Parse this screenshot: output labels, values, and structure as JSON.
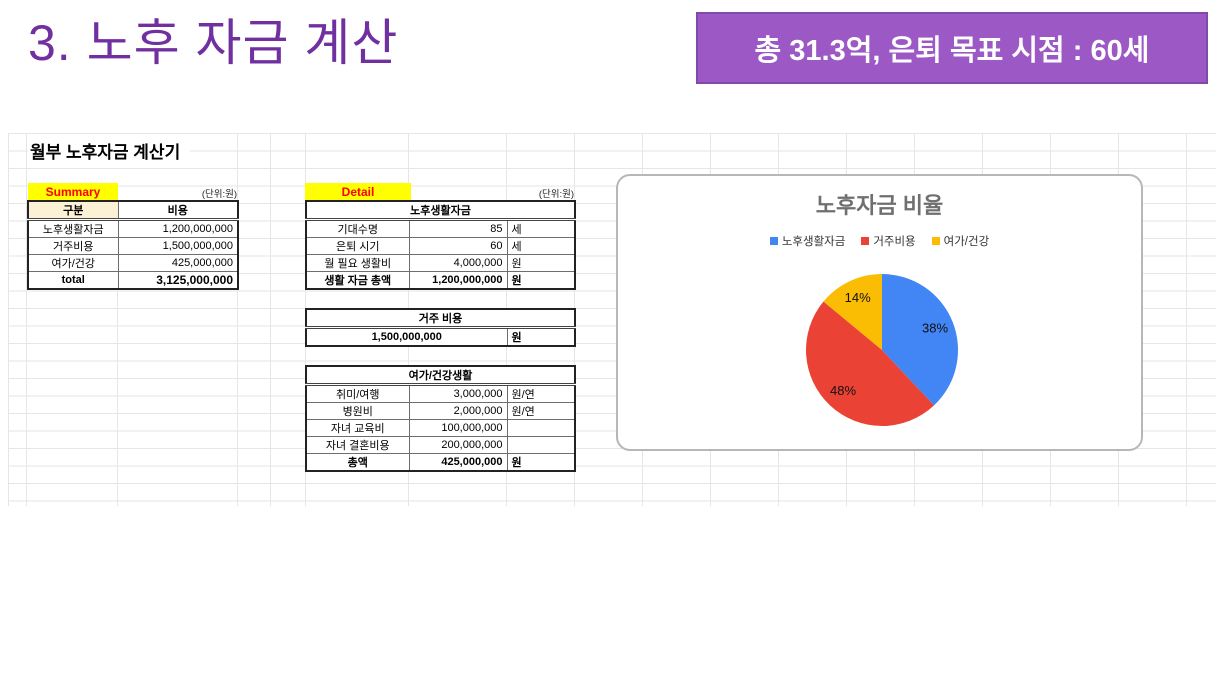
{
  "slide": {
    "title": "3. 노후 자금 계산",
    "badge": "총 31.3억, 은퇴 목표 시점  : 60세",
    "accent_purple": "#7030A0",
    "badge_bg": "#9C59C5",
    "badge_border": "#8249A8"
  },
  "sheet": {
    "title": "월부 노후자금 계산기",
    "summary": {
      "label": "Summary",
      "unit_note": "(단위:원)",
      "col_headers": [
        "구분",
        "비용"
      ],
      "rows": [
        {
          "name": "노후생활자금",
          "value": "1,200,000,000"
        },
        {
          "name": "거주비용",
          "value": "1,500,000,000"
        },
        {
          "name": "여가/건강",
          "value": "425,000,000"
        }
      ],
      "total_row": {
        "name": "total",
        "value": "3,125,000,000"
      }
    },
    "detail": {
      "label": "Detail",
      "unit_note": "(단위:원)",
      "living_fund": {
        "header": "노후생활자금",
        "rows": [
          {
            "name": "기대수명",
            "value": "85",
            "unit": "세"
          },
          {
            "name": "은퇴 시기",
            "value": "60",
            "unit": "세"
          },
          {
            "name": "월 필요 생활비",
            "value": "4,000,000",
            "unit": "원"
          },
          {
            "name": "생활 자금 총액",
            "value": "1,200,000,000",
            "unit": "원"
          }
        ]
      },
      "housing": {
        "header": "거주 비용",
        "value": "1,500,000,000",
        "unit": "원"
      },
      "leisure_health": {
        "header": "여가/건강생활",
        "rows": [
          {
            "name": "취미/여행",
            "value": "3,000,000",
            "unit": "원/연"
          },
          {
            "name": "병원비",
            "value": "2,000,000",
            "unit": "원/연"
          },
          {
            "name": "자녀 교육비",
            "value": "100,000,000",
            "unit": ""
          },
          {
            "name": "자녀 결혼비용",
            "value": "200,000,000",
            "unit": ""
          },
          {
            "name": "총액",
            "value": "425,000,000",
            "unit": "원"
          }
        ]
      }
    }
  },
  "chart_data": {
    "type": "pie",
    "title": "노후자금 비율",
    "labels": [
      "노후생활자금",
      "거주비용",
      "여가/건강"
    ],
    "values": [
      38,
      48,
      14
    ],
    "pct_labels": [
      "38%",
      "48%",
      "14%"
    ],
    "colors": [
      "#4285F4",
      "#EA4335",
      "#FBBC04"
    ],
    "legend_position": "top",
    "start_angle": "12-oclock, clockwise"
  }
}
